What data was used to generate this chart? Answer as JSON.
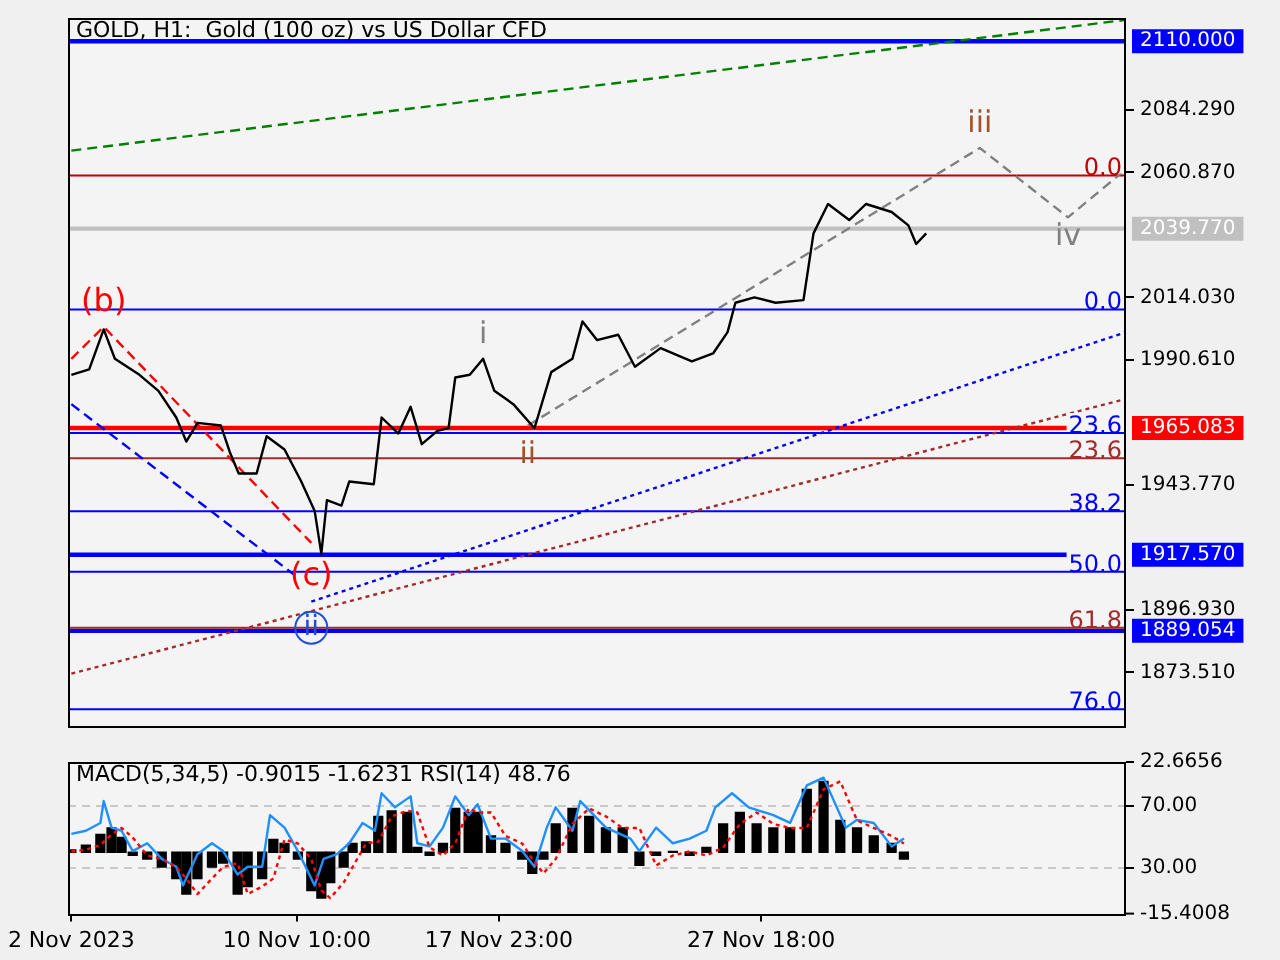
{
  "chart_data": [
    {
      "type": "line",
      "title": "GOLD, H1:  Gold (100 oz) vs US Dollar CFD",
      "xlim": [
        "2023-11-01T21:00",
        "2023-12-11T09:00"
      ],
      "ylim": [
        1853.4,
        2118.7
      ],
      "yticks": [
        {
          "value": 2084.29,
          "label": "2084.290"
        },
        {
          "value": 2060.87,
          "label": "2060.870"
        },
        {
          "value": 2014.03,
          "label": "2014.030"
        },
        {
          "value": 1990.61,
          "label": "1990.610"
        },
        {
          "value": 1943.77,
          "label": "1943.770"
        },
        {
          "value": 1896.93,
          "label": "1896.930"
        },
        {
          "value": 1873.51,
          "label": "1873.510"
        }
      ],
      "tick_labels": "y",
      "grid": false,
      "legend": false,
      "marker": "none",
      "series": [
        {
          "color": "#000000",
          "x": [
            "2023-11-02T00:00",
            "2023-11-02T16:00",
            "2023-11-03T05:00",
            "2023-11-03T15:00",
            "2023-11-04T13:00",
            "2023-11-05T06:00",
            "2023-11-05T22:00",
            "2023-11-06T07:00",
            "2023-11-06T17:00",
            "2023-11-07T14:00",
            "2023-11-07T22:00",
            "2023-11-08T06:00",
            "2023-11-08T22:00",
            "2023-11-09T07:00",
            "2023-11-09T23:00",
            "2023-11-10T14:00",
            "2023-11-11T02:00",
            "2023-11-11T08:00",
            "2023-11-11T13:00",
            "2023-11-12T02:00",
            "2023-11-12T09:00",
            "2023-11-13T07:00",
            "2023-11-13T14:00",
            "2023-11-14T05:00",
            "2023-11-14T16:00",
            "2023-11-15T02:00",
            "2023-11-15T16:00",
            "2023-11-16T02:00",
            "2023-11-16T08:00",
            "2023-11-16T21:00",
            "2023-11-17T09:00",
            "2023-11-17T19:00",
            "2023-11-18T12:00",
            "2023-11-19T07:00",
            "2023-11-19T22:00",
            "2023-11-20T17:00",
            "2023-11-21T02:00",
            "2023-11-21T15:00",
            "2023-11-22T10:00",
            "2023-11-23T01:00",
            "2023-11-24T00:00",
            "2023-11-25T04:00",
            "2023-11-25T23:00",
            "2023-11-26T12:00",
            "2023-11-26T19:00",
            "2023-11-27T12:00",
            "2023-11-28T07:00",
            "2023-11-29T08:00",
            "2023-11-29T17:00",
            "2023-11-30T06:00",
            "2023-12-01T01:00",
            "2023-12-01T16:00",
            "2023-12-02T15:00",
            "2023-12-03T06:00",
            "2023-12-03T13:00",
            "2023-12-03T22:00"
          ],
          "values": [
            1985,
            1987,
            2002,
            1991,
            1985,
            1979,
            1969,
            1960,
            1967,
            1966,
            1956,
            1948,
            1948,
            1962,
            1957,
            1945,
            1934,
            1918,
            1938,
            1936,
            1945,
            1944,
            1969,
            1963,
            1973,
            1959,
            1964,
            1965,
            1984,
            1985,
            1991,
            1979,
            1974,
            1965,
            1986,
            1991,
            2005,
            1998,
            2000,
            1988,
            1995,
            1990,
            1993,
            2001,
            2012,
            2014,
            2012,
            2013,
            2038,
            2049,
            2043,
            2049,
            2046,
            2041,
            2034,
            2038
          ]
        },
        {
          "color": "#008000",
          "line_style": "dashed",
          "x": [
            "2023-11-02T00:00",
            "2023-12-11T09:00"
          ],
          "values": [
            2069,
            2118
          ]
        },
        {
          "color": "#0000ff",
          "line_style": "dotted",
          "x": [
            "2023-11-10T23:00",
            "2023-12-11T09:00"
          ],
          "values": [
            1900,
            2001
          ]
        },
        {
          "color": "#0000ff",
          "line_style": "dashed",
          "x": [
            "2023-11-02T00:00",
            "2023-11-10T11:00"
          ],
          "values": [
            1974,
            1909
          ]
        },
        {
          "color": "#a52a2a",
          "line_style": "dotted",
          "x": [
            "2023-11-02T00:00",
            "2023-12-11T09:00"
          ],
          "values": [
            1873,
            1976
          ]
        },
        {
          "color": "#ff0000",
          "line_style": "dashed",
          "x": [
            "2023-11-02T00:00",
            "2023-11-03T05:00",
            "2023-11-10T23:00"
          ],
          "values": [
            1991,
            2003,
            1922
          ]
        },
        {
          "color": "#808080",
          "line_style": "dashed",
          "x": [
            "2023-11-19T01:00",
            "2023-12-05T22:00",
            "2023-12-09T05:00",
            "2023-12-11T09:00"
          ],
          "values": [
            1966,
            2070,
            2044,
            2062
          ]
        }
      ],
      "ref_lines": [
        {
          "axis": "y",
          "value": 2110,
          "label": "2110.000",
          "color": "#0000ff"
        },
        {
          "axis": "y",
          "value": 2059.7,
          "color": "#c00000"
        },
        {
          "axis": "y",
          "value": 2039.77,
          "label": "2039.770",
          "color": "#c0c0c0"
        },
        {
          "axis": "y",
          "value": 2009.5,
          "color": "#0000ff"
        },
        {
          "axis": "y",
          "value": 1965.083,
          "label": "1965.083",
          "color": "#ff0000"
        },
        {
          "axis": "y",
          "value": 1963.2,
          "color": "#0000ff"
        },
        {
          "axis": "y",
          "value": 1953.7,
          "color": "#a52a2a"
        },
        {
          "axis": "y",
          "value": 1933.9,
          "color": "#0000ff"
        },
        {
          "axis": "y",
          "value": 1917.57,
          "label": "1917.570",
          "color": "#0000ff"
        },
        {
          "axis": "y",
          "value": 1911.2,
          "color": "#0000ff"
        },
        {
          "axis": "y",
          "value": 1889.054,
          "label": "1889.054",
          "color": "#0000ff"
        },
        {
          "axis": "y",
          "value": 1890.2,
          "color": "#a52a2a"
        },
        {
          "axis": "y",
          "value": 1859.7,
          "color": "#0000ff"
        }
      ],
      "annotations": [
        {
          "text": "(b)",
          "x": "2023-11-03T05:00",
          "y": 2003
        },
        {
          "text": "(c)",
          "x": "2023-11-10T23:00",
          "y": 1922
        },
        {
          "text": "ii",
          "x": "2023-11-10T23:00",
          "y": 1900
        },
        {
          "text": "i",
          "x": "2023-11-17T09:00",
          "y": 1991
        },
        {
          "text": "ii",
          "x": "2023-11-19T01:00",
          "y": 1966
        },
        {
          "text": "iii",
          "x": "2023-12-05T22:00",
          "y": 2070
        },
        {
          "text": "iv",
          "x": "2023-12-09T05:00",
          "y": 2044
        },
        {
          "text": "0.0",
          "x": "2023-12-11T09:00",
          "y": 2059.7
        },
        {
          "text": "0.0",
          "x": "2023-12-11T09:00",
          "y": 2009.5
        },
        {
          "text": "23.6",
          "x": "2023-12-11T09:00",
          "y": 1963.2
        },
        {
          "text": "23.6",
          "x": "2023-12-11T09:00",
          "y": 1953.7
        },
        {
          "text": "38.2",
          "x": "2023-12-11T09:00",
          "y": 1933.9
        },
        {
          "text": "50.0",
          "x": "2023-12-11T09:00",
          "y": 1911.2
        },
        {
          "text": "61.8",
          "x": "2023-12-11T09:00",
          "y": 1890.2
        },
        {
          "text": "76.0",
          "x": "2023-12-11T09:00",
          "y": 1859.7
        }
      ]
    },
    {
      "type": "line",
      "title": "MACD(5,34,5) -0.9015 -1.6231 RSI(14) 48.76",
      "xlim": [
        "2023-11-01T21:00",
        "2023-12-11T09:00"
      ],
      "xticks": [
        {
          "value": "2023-11-02T00:00",
          "label": "2 Nov 2023"
        },
        {
          "value": "2023-11-10T10:00",
          "label": "10 Nov 10:00"
        },
        {
          "value": "2023-11-17T23:00",
          "label": "17 Nov 23:00"
        },
        {
          "value": "2023-11-27T18:00",
          "label": "27 Nov 18:00"
        }
      ],
      "ylim": [
        1,
        98
      ],
      "yticks": [
        {
          "value": 70,
          "label": "70.00"
        },
        {
          "value": 30,
          "label": "30.00"
        }
      ],
      "y2lim": [
        -15.4008,
        22.6656
      ],
      "y2ticks": [
        22.6656,
        -15.4008
      ],
      "grid": "y",
      "legend": false,
      "marker": "none",
      "series": [
        {
          "type": "bar",
          "axis": "y2",
          "color": "#000000",
          "x": [
            "2023-11-02T00:00",
            "2023-11-02T13:00",
            "2023-11-03T02:00",
            "2023-11-03T12:00",
            "2023-11-03T21:00",
            "2023-11-04T07:00",
            "2023-11-04T20:00",
            "2023-11-05T09:00",
            "2023-11-05T22:00",
            "2023-11-06T07:00",
            "2023-11-06T17:00",
            "2023-11-07T06:00",
            "2023-11-07T16:00",
            "2023-11-08T05:00",
            "2023-11-08T14:00",
            "2023-11-09T03:00",
            "2023-11-09T13:00",
            "2023-11-09T23:00",
            "2023-11-10T11:00",
            "2023-11-10T23:00",
            "2023-11-11T08:00",
            "2023-11-11T16:00",
            "2023-11-12T04:00",
            "2023-11-12T12:00",
            "2023-11-13T00:00",
            "2023-11-13T11:00",
            "2023-11-13T23:00",
            "2023-11-14T13:00",
            "2023-11-14T22:00",
            "2023-11-15T09:00",
            "2023-11-15T21:00",
            "2023-11-16T08:00",
            "2023-11-16T20:00",
            "2023-11-17T04:00",
            "2023-11-17T16:00",
            "2023-11-18T05:00",
            "2023-11-18T20:00",
            "2023-11-19T05:00",
            "2023-11-19T15:00",
            "2023-11-20T02:00",
            "2023-11-20T17:00",
            "2023-11-21T08:00",
            "2023-11-21T23:00",
            "2023-11-22T14:00",
            "2023-11-23T05:00",
            "2023-11-23T20:00",
            "2023-11-24T11:00",
            "2023-11-25T02:00",
            "2023-11-25T17:00",
            "2023-11-26T08:00",
            "2023-11-26T23:00",
            "2023-11-27T14:00",
            "2023-11-28T05:00",
            "2023-11-28T20:00",
            "2023-11-29T11:00",
            "2023-11-30T02:00",
            "2023-11-30T17:00",
            "2023-12-01T08:00",
            "2023-12-01T23:00",
            "2023-12-02T15:00",
            "2023-12-03T02:00"
          ],
          "values": [
            0.6,
            1.8,
            4.5,
            6.1,
            3.7,
            -0.8,
            -1.7,
            -3.7,
            -6.6,
            -10.5,
            -6.6,
            -3.7,
            -2.7,
            -10.5,
            -8.6,
            -6.6,
            3.2,
            2.2,
            -1.7,
            -9.6,
            -11.5,
            -7.6,
            -3.7,
            2.2,
            2.6,
            9.0,
            10.4,
            10.0,
            1.2,
            -0.8,
            2.2,
            11.0,
            10.0,
            10.0,
            4.1,
            2.2,
            -1.7,
            -5.3,
            -1.7,
            7.1,
            11.0,
            9.0,
            6.1,
            6.1,
            -3.3,
            -0.8,
            0.2,
            -0.8,
            1.2,
            7.1,
            10.0,
            7.1,
            6.1,
            6.1,
            15.8,
            17.8,
            8.0,
            6.1,
            4.1,
            2.2,
            -1.7
          ]
        },
        {
          "type": "line",
          "axis": "y2",
          "color": "#ff0000",
          "line_style": "dotted",
          "x": [
            "2023-11-02T00:00",
            "2023-11-02T13:00",
            "2023-11-03T02:00",
            "2023-11-03T12:00",
            "2023-11-03T21:00",
            "2023-11-04T07:00",
            "2023-11-04T20:00",
            "2023-11-05T09:00",
            "2023-11-05T22:00",
            "2023-11-06T07:00",
            "2023-11-06T17:00",
            "2023-11-07T06:00",
            "2023-11-07T16:00",
            "2023-11-08T05:00",
            "2023-11-08T14:00",
            "2023-11-09T03:00",
            "2023-11-09T13:00",
            "2023-11-09T23:00",
            "2023-11-10T11:00",
            "2023-11-10T23:00",
            "2023-11-11T08:00",
            "2023-11-11T16:00",
            "2023-11-12T04:00",
            "2023-11-12T12:00",
            "2023-11-13T00:00",
            "2023-11-13T11:00",
            "2023-11-13T23:00",
            "2023-11-14T13:00",
            "2023-11-14T22:00",
            "2023-11-15T09:00",
            "2023-11-15T21:00",
            "2023-11-16T08:00",
            "2023-11-16T20:00",
            "2023-11-17T04:00",
            "2023-11-17T16:00",
            "2023-11-18T05:00",
            "2023-11-18T20:00",
            "2023-11-19T05:00",
            "2023-11-19T15:00",
            "2023-11-20T02:00",
            "2023-11-20T17:00",
            "2023-11-21T08:00",
            "2023-11-21T23:00",
            "2023-11-22T14:00",
            "2023-11-23T05:00",
            "2023-11-23T20:00",
            "2023-11-24T11:00",
            "2023-11-25T02:00",
            "2023-11-25T17:00",
            "2023-11-26T08:00",
            "2023-11-26T23:00",
            "2023-11-27T14:00",
            "2023-11-28T05:00",
            "2023-11-28T20:00",
            "2023-11-29T11:00",
            "2023-11-30T02:00",
            "2023-11-30T17:00",
            "2023-12-01T08:00",
            "2023-12-01T23:00",
            "2023-12-02T15:00",
            "2023-12-03T02:00"
          ],
          "values": [
            0.2,
            0.6,
            1.8,
            4.5,
            6.1,
            3.7,
            -0.8,
            -1.7,
            -3.7,
            -6.6,
            -10.5,
            -6.6,
            -3.7,
            -2.7,
            -10.5,
            -8.6,
            -6.6,
            3.2,
            2.2,
            -1.7,
            -9.6,
            -11.5,
            -7.6,
            -3.7,
            2.2,
            2.6,
            9.0,
            10.4,
            10.0,
            1.2,
            -0.8,
            2.2,
            11.0,
            10.0,
            10.0,
            4.1,
            2.2,
            -1.7,
            -5.3,
            -1.7,
            7.1,
            11.0,
            9.0,
            6.1,
            6.1,
            -3.3,
            -0.8,
            0.2,
            -0.8,
            1.2,
            7.1,
            10.0,
            7.1,
            6.1,
            6.1,
            15.8,
            17.8,
            8.0,
            6.1,
            4.1,
            2.2
          ]
        },
        {
          "type": "line",
          "color": "#1e90ff",
          "x": [
            "2023-11-02T00:00",
            "2023-11-02T13:00",
            "2023-11-03T02:00",
            "2023-11-03T05:00",
            "2023-11-03T12:00",
            "2023-11-03T21:00",
            "2023-11-04T07:00",
            "2023-11-04T20:00",
            "2023-11-05T09:00",
            "2023-11-05T22:00",
            "2023-11-06T04:00",
            "2023-11-06T17:00",
            "2023-11-07T06:00",
            "2023-11-07T16:00",
            "2023-11-08T05:00",
            "2023-11-08T14:00",
            "2023-11-09T03:00",
            "2023-11-09T10:00",
            "2023-11-09T23:00",
            "2023-11-10T11:00",
            "2023-11-11T02:00",
            "2023-11-11T10:00",
            "2023-11-11T22:00",
            "2023-11-12T09:00",
            "2023-11-12T21:00",
            "2023-11-13T08:00",
            "2023-11-13T14:00",
            "2023-11-14T02:00",
            "2023-11-14T16:00",
            "2023-11-14T22:00",
            "2023-11-15T09:00",
            "2023-11-15T21:00",
            "2023-11-16T08:00",
            "2023-11-16T20:00",
            "2023-11-17T04:00",
            "2023-11-17T16:00",
            "2023-11-18T05:00",
            "2023-11-18T20:00",
            "2023-11-19T07:00",
            "2023-11-19T18:00",
            "2023-11-20T02:00",
            "2023-11-20T17:00",
            "2023-11-21T00:00",
            "2023-11-21T23:00",
            "2023-11-22T21:00",
            "2023-11-23T05:00",
            "2023-11-23T20:00",
            "2023-11-24T11:00",
            "2023-11-25T02:00",
            "2023-11-25T17:00",
            "2023-11-26T01:00",
            "2023-11-26T16:00",
            "2023-11-27T07:00",
            "2023-11-28T05:00",
            "2023-11-28T20:00",
            "2023-11-29T11:00",
            "2023-11-30T02:00",
            "2023-11-30T22:00",
            "2023-12-01T08:00",
            "2023-12-01T23:00",
            "2023-12-02T15:00",
            "2023-12-03T02:00"
          ],
          "values": [
            52,
            54,
            59,
            73,
            56,
            54,
            41,
            46,
            36,
            31,
            19,
            39,
            46,
            41,
            26,
            31,
            31,
            64,
            56,
            41,
            19,
            36,
            39,
            46,
            59,
            54,
            78,
            69,
            76,
            46,
            44,
            56,
            76,
            64,
            71,
            49,
            49,
            41,
            31,
            56,
            69,
            54,
            73,
            56,
            49,
            41,
            56,
            46,
            49,
            54,
            69,
            78,
            69,
            64,
            59,
            83,
            88,
            56,
            61,
            59,
            44,
            49
          ]
        }
      ]
    }
  ]
}
